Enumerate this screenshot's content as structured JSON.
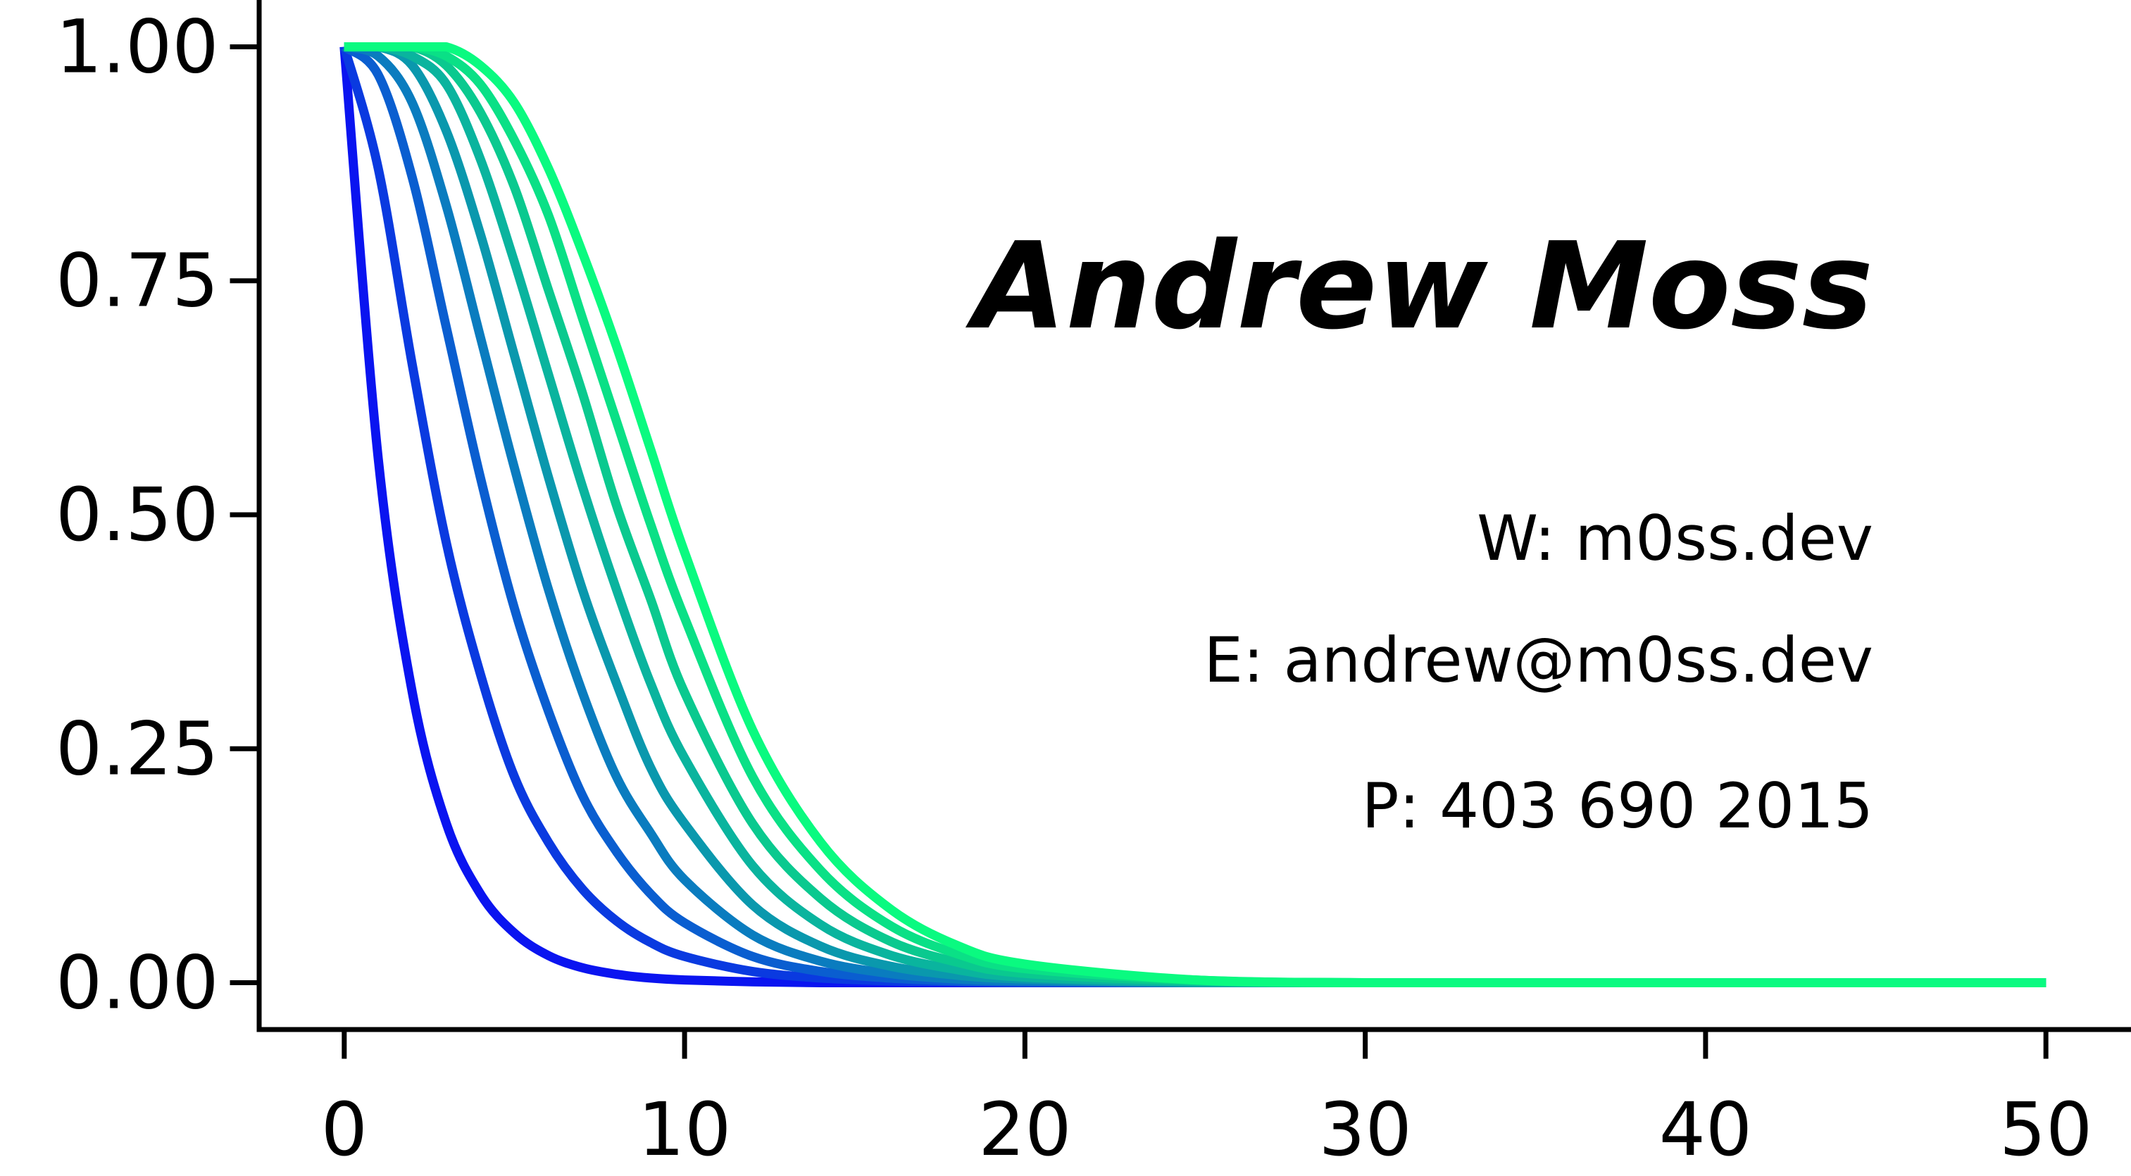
{
  "card": {
    "name": "Andrew Moss",
    "website": "W: m0ss.dev",
    "email": "E: andrew@m0ss.dev",
    "phone": "P: 403 690 2015"
  },
  "chart_data": {
    "type": "line",
    "title": "",
    "xlabel": "",
    "ylabel": "",
    "xlim": [
      -2.5,
      52.5
    ],
    "ylim": [
      -0.05,
      1.05
    ],
    "xticks": [
      0,
      10,
      20,
      30,
      40,
      50
    ],
    "xtick_labels": [
      "0",
      "10",
      "20",
      "30",
      "40",
      "50"
    ],
    "yticks": [
      0.0,
      0.25,
      0.5,
      0.75,
      1.0
    ],
    "ytick_labels": [
      "0.00",
      "0.25",
      "0.50",
      "0.75",
      "1.00"
    ],
    "grid": false,
    "legend": "none",
    "x": [
      0,
      1,
      2,
      3,
      4,
      5,
      6,
      7,
      8,
      9,
      10,
      12,
      14,
      16,
      18,
      20,
      25,
      30,
      40,
      50
    ],
    "series": [
      {
        "color": "#0a14f0",
        "values": [
          1.0,
          0.56,
          0.31,
          0.17,
          0.095,
          0.053,
          0.029,
          0.016,
          0.009,
          0.005,
          0.003,
          0.001,
          0.0,
          0.0,
          0.0,
          0.0,
          0.0,
          0.0,
          0.0,
          0.0
        ]
      },
      {
        "color": "#0a3ae0",
        "values": [
          1.0,
          0.87,
          0.66,
          0.47,
          0.33,
          0.22,
          0.15,
          0.1,
          0.066,
          0.043,
          0.028,
          0.012,
          0.005,
          0.002,
          0.001,
          0.0,
          0.0,
          0.0,
          0.0,
          0.0
        ]
      },
      {
        "color": "#0a5ed0",
        "values": [
          1.0,
          0.97,
          0.86,
          0.7,
          0.54,
          0.4,
          0.29,
          0.2,
          0.14,
          0.095,
          0.064,
          0.028,
          0.012,
          0.005,
          0.002,
          0.001,
          0.0,
          0.0,
          0.0,
          0.0
        ]
      },
      {
        "color": "#0a7cbf",
        "values": [
          1.0,
          0.99,
          0.94,
          0.83,
          0.69,
          0.55,
          0.42,
          0.31,
          0.22,
          0.16,
          0.11,
          0.051,
          0.023,
          0.01,
          0.004,
          0.002,
          0.0,
          0.0,
          0.0,
          0.0
        ]
      },
      {
        "color": "#0a98ad",
        "values": [
          1.0,
          1.0,
          0.98,
          0.91,
          0.8,
          0.67,
          0.54,
          0.42,
          0.32,
          0.23,
          0.17,
          0.083,
          0.039,
          0.018,
          0.008,
          0.004,
          0.0,
          0.0,
          0.0,
          0.0
        ]
      },
      {
        "color": "#0ab49e",
        "values": [
          1.0,
          1.0,
          0.99,
          0.96,
          0.88,
          0.77,
          0.65,
          0.53,
          0.42,
          0.32,
          0.24,
          0.125,
          0.062,
          0.03,
          0.014,
          0.006,
          0.001,
          0.0,
          0.0,
          0.0
        ]
      },
      {
        "color": "#0ac98f",
        "values": [
          1.0,
          1.0,
          1.0,
          0.98,
          0.93,
          0.85,
          0.74,
          0.63,
          0.51,
          0.41,
          0.31,
          0.17,
          0.09,
          0.045,
          0.022,
          0.01,
          0.002,
          0.0,
          0.0,
          0.0
        ]
      },
      {
        "color": "#0ae086",
        "values": [
          1.0,
          1.0,
          1.0,
          0.99,
          0.96,
          0.9,
          0.82,
          0.71,
          0.6,
          0.49,
          0.39,
          0.22,
          0.12,
          0.062,
          0.031,
          0.015,
          0.003,
          0.0,
          0.0,
          0.0
        ]
      },
      {
        "color": "#0afa80",
        "values": [
          1.0,
          1.0,
          1.0,
          1.0,
          0.98,
          0.94,
          0.87,
          0.78,
          0.68,
          0.57,
          0.46,
          0.27,
          0.15,
          0.08,
          0.04,
          0.02,
          0.003,
          0.0,
          0.0,
          0.0
        ]
      }
    ]
  }
}
